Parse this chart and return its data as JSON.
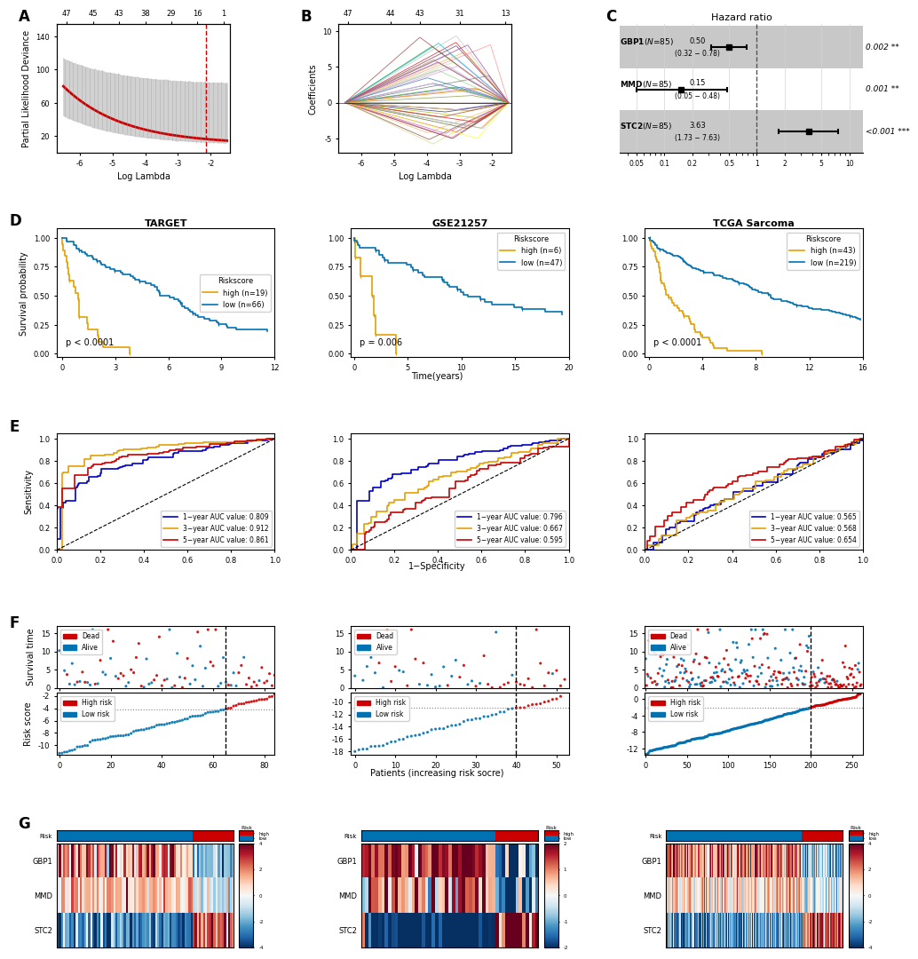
{
  "fig_width": 10.2,
  "fig_height": 13.51,
  "panel_labels": [
    "A",
    "B",
    "C",
    "D",
    "E",
    "F",
    "G"
  ],
  "lasso_A": {
    "x_ticks": [
      -6,
      -5,
      -4,
      -3,
      -2
    ],
    "x_top_labels": [
      47,
      45,
      43,
      38,
      29,
      16,
      1
    ],
    "y_label": "Partial Likelihood Deviance",
    "x_label": "Log Lambda",
    "vline_x": -2.15,
    "curve_color": "#CC0000",
    "ribbon_color": "#CCCCCC"
  },
  "lasso_B": {
    "x_ticks": [
      -6,
      -5,
      -4,
      -3,
      -2
    ],
    "x_top_labels": [
      47,
      44,
      43,
      31,
      13
    ],
    "y_label": "Coefficients",
    "x_label": "Log Lambda"
  },
  "forest_C": {
    "title": "Hazard ratio",
    "genes": [
      "GBP1",
      "MMD",
      "STC2"
    ],
    "n_samples": [
      85,
      85,
      85
    ],
    "hr_vals": [
      0.5,
      0.15,
      3.63
    ],
    "hr_low": [
      0.32,
      0.05,
      1.73
    ],
    "hr_high": [
      0.78,
      0.48,
      7.63
    ],
    "hr_center_text": [
      "0.50",
      "0.15",
      "3.63"
    ],
    "hr_ci_text": [
      "(0.32 − 0.78)",
      "(0.05 − 0.48)",
      "(1.73 − 7.63)"
    ],
    "p_text": [
      "0.002 **",
      "0.001 **",
      "<0.001 ***"
    ],
    "x_ticks": [
      0.05,
      0.1,
      0.2,
      0.5,
      1,
      2,
      5,
      10
    ],
    "vline_x": 1,
    "row_colors": [
      "#C8C8C8",
      "#FFFFFF",
      "#C8C8C8"
    ]
  },
  "km_D": {
    "cohorts": [
      "TARGET",
      "GSE21257",
      "TCGA Sarcoma"
    ],
    "high_color": "#E69F00",
    "low_color": "#0072B2",
    "configs": [
      {
        "high_n": 19,
        "low_n": 66,
        "pval": "p < 0.0001",
        "x_max": 12,
        "x_ticks": [
          0,
          3,
          6,
          9,
          12
        ],
        "title": "TARGET"
      },
      {
        "high_n": 6,
        "low_n": 47,
        "pval": "p = 0.006",
        "x_max": 20,
        "x_ticks": [
          0,
          5,
          10,
          15,
          20
        ],
        "title": "GSE21257"
      },
      {
        "high_n": 43,
        "low_n": 219,
        "pval": "p < 0.0001",
        "x_max": 16,
        "x_ticks": [
          0,
          4,
          8,
          12,
          16
        ],
        "title": "TCGA Sarcoma"
      }
    ],
    "y_ticks": [
      0.0,
      0.25,
      0.5,
      0.75,
      1.0
    ]
  },
  "roc_E": {
    "color_1yr": "#0000CC",
    "color_3yr": "#E69F00",
    "color_5yr": "#CC0000",
    "configs": [
      {
        "auc_1": 0.809,
        "auc_3": 0.912,
        "auc_5": 0.861
      },
      {
        "auc_1": 0.796,
        "auc_3": 0.667,
        "auc_5": 0.595
      },
      {
        "auc_1": 0.565,
        "auc_3": 0.568,
        "auc_5": 0.654
      }
    ]
  },
  "dist_F": {
    "dead_color": "#CC0000",
    "alive_color": "#0072B2",
    "high_color": "#CC0000",
    "low_color": "#0072B2",
    "configs": [
      {
        "n": 85,
        "cutoff": 65,
        "y_risk_min": -11,
        "y_risk_max": -2,
        "risk_yticks": [
          -10,
          -8,
          -6,
          -4,
          -2
        ],
        "risk_ytop": -2,
        "x_ticks": [
          0,
          20,
          40,
          60,
          80
        ],
        "x_max": 83
      },
      {
        "n": 53,
        "cutoff": 40,
        "y_risk_min": -18,
        "y_risk_max": -9,
        "risk_yticks": [
          -18,
          -16,
          -14,
          -12,
          -10
        ],
        "risk_ytop": -10,
        "x_ticks": [
          0,
          10,
          20,
          30,
          40,
          50
        ],
        "x_max": 52
      },
      {
        "n": 262,
        "cutoff": 200,
        "y_risk_min": -13,
        "y_risk_max": 1,
        "risk_yticks": [
          -12,
          -8,
          -4,
          0
        ],
        "risk_ytop": 1,
        "x_ticks": [
          0,
          50,
          100,
          150,
          200,
          250
        ],
        "x_max": 262
      }
    ]
  },
  "heatmap_G": {
    "genes": [
      "GBP1",
      "MMD",
      "STC2"
    ],
    "low_color": "#0072B2",
    "high_color": "#CC0000",
    "cbar_ticks_1": [
      -4,
      -2,
      0,
      2,
      4
    ],
    "cbar_ticks_2": [
      -2,
      -1,
      0,
      1,
      2
    ],
    "configs": [
      {
        "n": 85,
        "cutoff": 65,
        "vmin": -4,
        "vmax": 4
      },
      {
        "n": 53,
        "cutoff": 40,
        "vmin": -2,
        "vmax": 2
      },
      {
        "n": 262,
        "cutoff": 200,
        "vmin": -4,
        "vmax": 4
      }
    ]
  },
  "label_fontsize": 12
}
